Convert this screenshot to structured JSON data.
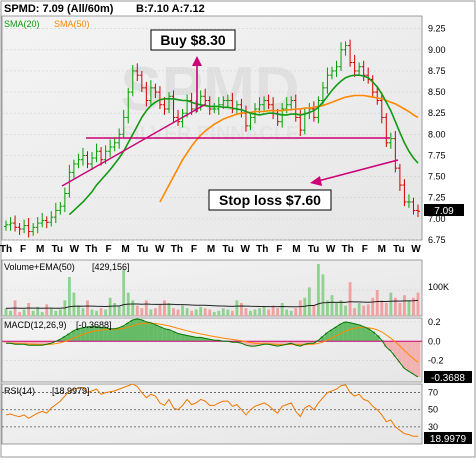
{
  "header": {
    "symbol_line": "SPMD: 7.09 (All/60m)",
    "bid_ask": "B:7.10 A:7.12"
  },
  "price_panel": {
    "legend": {
      "sma20": "SMA(20)",
      "sma50": "SMA(50)"
    },
    "y_ticks": [
      "9.25",
      "9.00",
      "8.75",
      "8.50",
      "8.25",
      "8.00",
      "7.75",
      "7.50",
      "7.25",
      "7.00",
      "6.75"
    ],
    "last_price_label": "7.09",
    "watermark": "SPMD",
    "watermark_sub": "SILVER PINNACLE"
  },
  "annotations": {
    "buy": "Buy $8.30",
    "stop": "Stop loss $7.60"
  },
  "x_labels": [
    "Th",
    "F",
    "M",
    "Tu",
    "W",
    "Th",
    "F",
    "M",
    "Tu",
    "W",
    "Th",
    "F",
    "M",
    "Tu",
    "W",
    "Th",
    "F",
    "M",
    "Tu",
    "W",
    "Th",
    "F",
    "M",
    "Tu",
    "W"
  ],
  "volume_panel": {
    "legend": "Volume+EMA(50)",
    "legend_value": "[429,156]",
    "y_tick": "100K"
  },
  "macd_panel": {
    "legend": "MACD(12,26,9)",
    "legend_value": "[-0.3688]",
    "y_ticks": [
      "0.2",
      "0.0",
      "-0.2"
    ],
    "last_label": "-0.3688"
  },
  "rsi_panel": {
    "legend": "RSI(14)",
    "legend_value": "[18.9979]",
    "y_ticks": [
      "70",
      "50",
      "30"
    ],
    "last_label": "18.9979"
  },
  "colors": {
    "up": "#00a000",
    "down": "#d00000",
    "sma20": "#119911",
    "sma50": "#ff8800",
    "annotation": "#cc0077",
    "hist_pos": "#66bb66",
    "hist_neg": "#f2b2b2",
    "rsi": "#ee7700"
  },
  "chart_data": [
    {
      "type": "candlestick",
      "title": "SPMD: 7.09 (All/60m)",
      "ylim": [
        6.75,
        9.4
      ],
      "x_labels": [
        "Th",
        "F",
        "M",
        "Tu",
        "W",
        "Th",
        "F",
        "M",
        "Tu",
        "W",
        "Th",
        "F",
        "M",
        "Tu",
        "W",
        "Th",
        "F",
        "M",
        "Tu",
        "W",
        "Th",
        "F",
        "M",
        "Tu",
        "W"
      ],
      "close": [
        6.93,
        6.95,
        6.9,
        6.88,
        6.92,
        6.85,
        6.9,
        6.95,
        6.98,
        6.96,
        7.02,
        7.1,
        7.15,
        7.3,
        7.55,
        7.65,
        7.7,
        7.75,
        7.65,
        7.72,
        7.8,
        7.7,
        7.8,
        7.85,
        7.9,
        8.0,
        8.2,
        8.5,
        8.75,
        8.7,
        8.55,
        8.4,
        8.55,
        8.5,
        8.35,
        8.3,
        8.45,
        8.2,
        8.15,
        8.25,
        8.4,
        8.3,
        8.35,
        8.45,
        8.4,
        8.3,
        8.3,
        8.35,
        8.4,
        8.4,
        8.3,
        8.35,
        8.25,
        8.1,
        8.2,
        8.3,
        8.35,
        8.4,
        8.35,
        8.25,
        8.15,
        8.3,
        8.35,
        8.4,
        8.2,
        8.05,
        8.25,
        8.3,
        8.2,
        8.4,
        8.55,
        8.7,
        8.75,
        8.8,
        9.0,
        9.05,
        8.85,
        8.75,
        8.8,
        8.7,
        8.65,
        8.5,
        8.4,
        8.2,
        7.9,
        7.95,
        7.6,
        7.4,
        7.2,
        7.2,
        7.1,
        7.09
      ],
      "series": [
        {
          "name": "SMA(20)",
          "values": [
            null,
            null,
            null,
            null,
            null,
            null,
            null,
            null,
            null,
            null,
            null,
            null,
            null,
            null,
            7.05,
            7.1,
            7.15,
            7.2,
            7.26,
            7.32,
            7.4,
            7.46,
            7.52,
            7.58,
            7.65,
            7.72,
            7.8,
            7.9,
            8.0,
            8.1,
            8.2,
            8.28,
            8.34,
            8.38,
            8.41,
            8.42,
            8.42,
            8.42,
            8.41,
            8.4,
            8.4,
            8.38,
            8.36,
            8.35,
            8.34,
            8.33,
            8.33,
            8.33,
            8.32,
            8.32,
            8.31,
            8.3,
            8.29,
            8.27,
            8.25,
            8.24,
            8.23,
            8.24,
            8.25,
            8.25,
            8.24,
            8.23,
            8.23,
            8.24,
            8.24,
            8.23,
            8.24,
            8.26,
            8.28,
            8.32,
            8.38,
            8.45,
            8.52,
            8.58,
            8.63,
            8.67,
            8.69,
            8.7,
            8.7,
            8.69,
            8.67,
            8.62,
            8.56,
            8.48,
            8.38,
            8.28,
            8.15,
            8.02,
            7.9,
            7.8,
            7.72,
            7.66
          ]
        },
        {
          "name": "SMA(50)",
          "values": [
            null,
            null,
            null,
            null,
            null,
            null,
            null,
            null,
            null,
            null,
            null,
            null,
            null,
            null,
            null,
            null,
            null,
            null,
            null,
            null,
            null,
            null,
            null,
            null,
            null,
            null,
            null,
            null,
            null,
            null,
            null,
            null,
            null,
            null,
            7.2,
            7.3,
            7.4,
            7.5,
            7.6,
            7.7,
            7.78,
            7.86,
            7.93,
            7.99,
            8.04,
            8.08,
            8.12,
            8.15,
            8.18,
            8.2,
            8.22,
            8.24,
            8.25,
            8.26,
            8.26,
            8.27,
            8.27,
            8.27,
            8.28,
            8.28,
            8.28,
            8.28,
            8.29,
            8.29,
            8.3,
            8.3,
            8.31,
            8.31,
            8.32,
            8.33,
            8.34,
            8.36,
            8.38,
            8.4,
            8.42,
            8.44,
            8.45,
            8.46,
            8.46,
            8.46,
            8.45,
            8.44,
            8.43,
            8.42,
            8.4,
            8.38,
            8.36,
            8.33,
            8.3,
            8.27,
            8.23,
            8.2
          ]
        }
      ]
    },
    {
      "type": "bar",
      "title": "Volume+EMA(50)",
      "ylim": [
        0,
        200000
      ],
      "values": [
        30000,
        20000,
        60000,
        15000,
        25000,
        50000,
        20000,
        35000,
        15000,
        45000,
        30000,
        20000,
        25000,
        60000,
        150000,
        90000,
        40000,
        30000,
        60000,
        25000,
        20000,
        30000,
        25000,
        70000,
        50000,
        40000,
        180000,
        90000,
        60000,
        40000,
        30000,
        60000,
        25000,
        30000,
        45000,
        60000,
        50000,
        30000,
        25000,
        40000,
        30000,
        20000,
        25000,
        35000,
        30000,
        25000,
        15000,
        20000,
        30000,
        25000,
        20000,
        60000,
        50000,
        30000,
        20000,
        25000,
        30000,
        35000,
        25000,
        40000,
        30000,
        50000,
        25000,
        20000,
        30000,
        60000,
        70000,
        110000,
        40000,
        200000,
        160000,
        60000,
        80000,
        50000,
        60000,
        40000,
        130000,
        30000,
        50000,
        40000,
        45000,
        70000,
        100000,
        60000,
        50000,
        90000,
        70000,
        50000,
        80000,
        60000,
        70000,
        90000
      ]
    },
    {
      "type": "line",
      "title": "MACD(12,26,9)",
      "ylim": [
        -0.42,
        0.24
      ],
      "series": [
        {
          "name": "MACD(12,26,9)",
          "values": [
            -0.02,
            -0.02,
            -0.03,
            -0.03,
            -0.03,
            -0.04,
            -0.04,
            -0.04,
            -0.04,
            -0.03,
            -0.02,
            0.0,
            0.02,
            0.05,
            0.08,
            0.11,
            0.13,
            0.14,
            0.15,
            0.15,
            0.15,
            0.14,
            0.14,
            0.13,
            0.13,
            0.14,
            0.16,
            0.19,
            0.22,
            0.23,
            0.22,
            0.2,
            0.19,
            0.17,
            0.15,
            0.13,
            0.12,
            0.1,
            0.08,
            0.07,
            0.06,
            0.05,
            0.04,
            0.04,
            0.03,
            0.02,
            0.01,
            0.01,
            0.0,
            0.0,
            -0.01,
            -0.01,
            -0.02,
            -0.04,
            -0.05,
            -0.05,
            -0.04,
            -0.03,
            -0.03,
            -0.04,
            -0.05,
            -0.04,
            -0.03,
            -0.02,
            -0.04,
            -0.05,
            -0.03,
            -0.02,
            -0.02,
            0.01,
            0.05,
            0.09,
            0.12,
            0.15,
            0.18,
            0.2,
            0.19,
            0.18,
            0.17,
            0.15,
            0.13,
            0.1,
            0.06,
            0.01,
            -0.06,
            -0.1,
            -0.16,
            -0.22,
            -0.28,
            -0.31,
            -0.34,
            -0.3688
          ]
        }
      ]
    },
    {
      "type": "line",
      "title": "RSI(14)",
      "ylim": [
        10,
        80
      ],
      "series": [
        {
          "name": "RSI(14)",
          "values": [
            44,
            45,
            43,
            42,
            44,
            40,
            43,
            46,
            48,
            46,
            52,
            56,
            60,
            66,
            72,
            74,
            75,
            76,
            70,
            72,
            74,
            68,
            70,
            71,
            72,
            74,
            76,
            78,
            80,
            77,
            70,
            64,
            68,
            66,
            58,
            55,
            62,
            52,
            50,
            55,
            62,
            56,
            58,
            62,
            60,
            55,
            55,
            58,
            60,
            60,
            54,
            56,
            50,
            44,
            50,
            54,
            56,
            58,
            55,
            50,
            46,
            54,
            56,
            58,
            48,
            42,
            52,
            55,
            50,
            58,
            64,
            70,
            72,
            74,
            78,
            79,
            70,
            66,
            68,
            62,
            60,
            54,
            50,
            44,
            36,
            38,
            30,
            26,
            22,
            21,
            19,
            18.9979
          ]
        }
      ]
    }
  ]
}
